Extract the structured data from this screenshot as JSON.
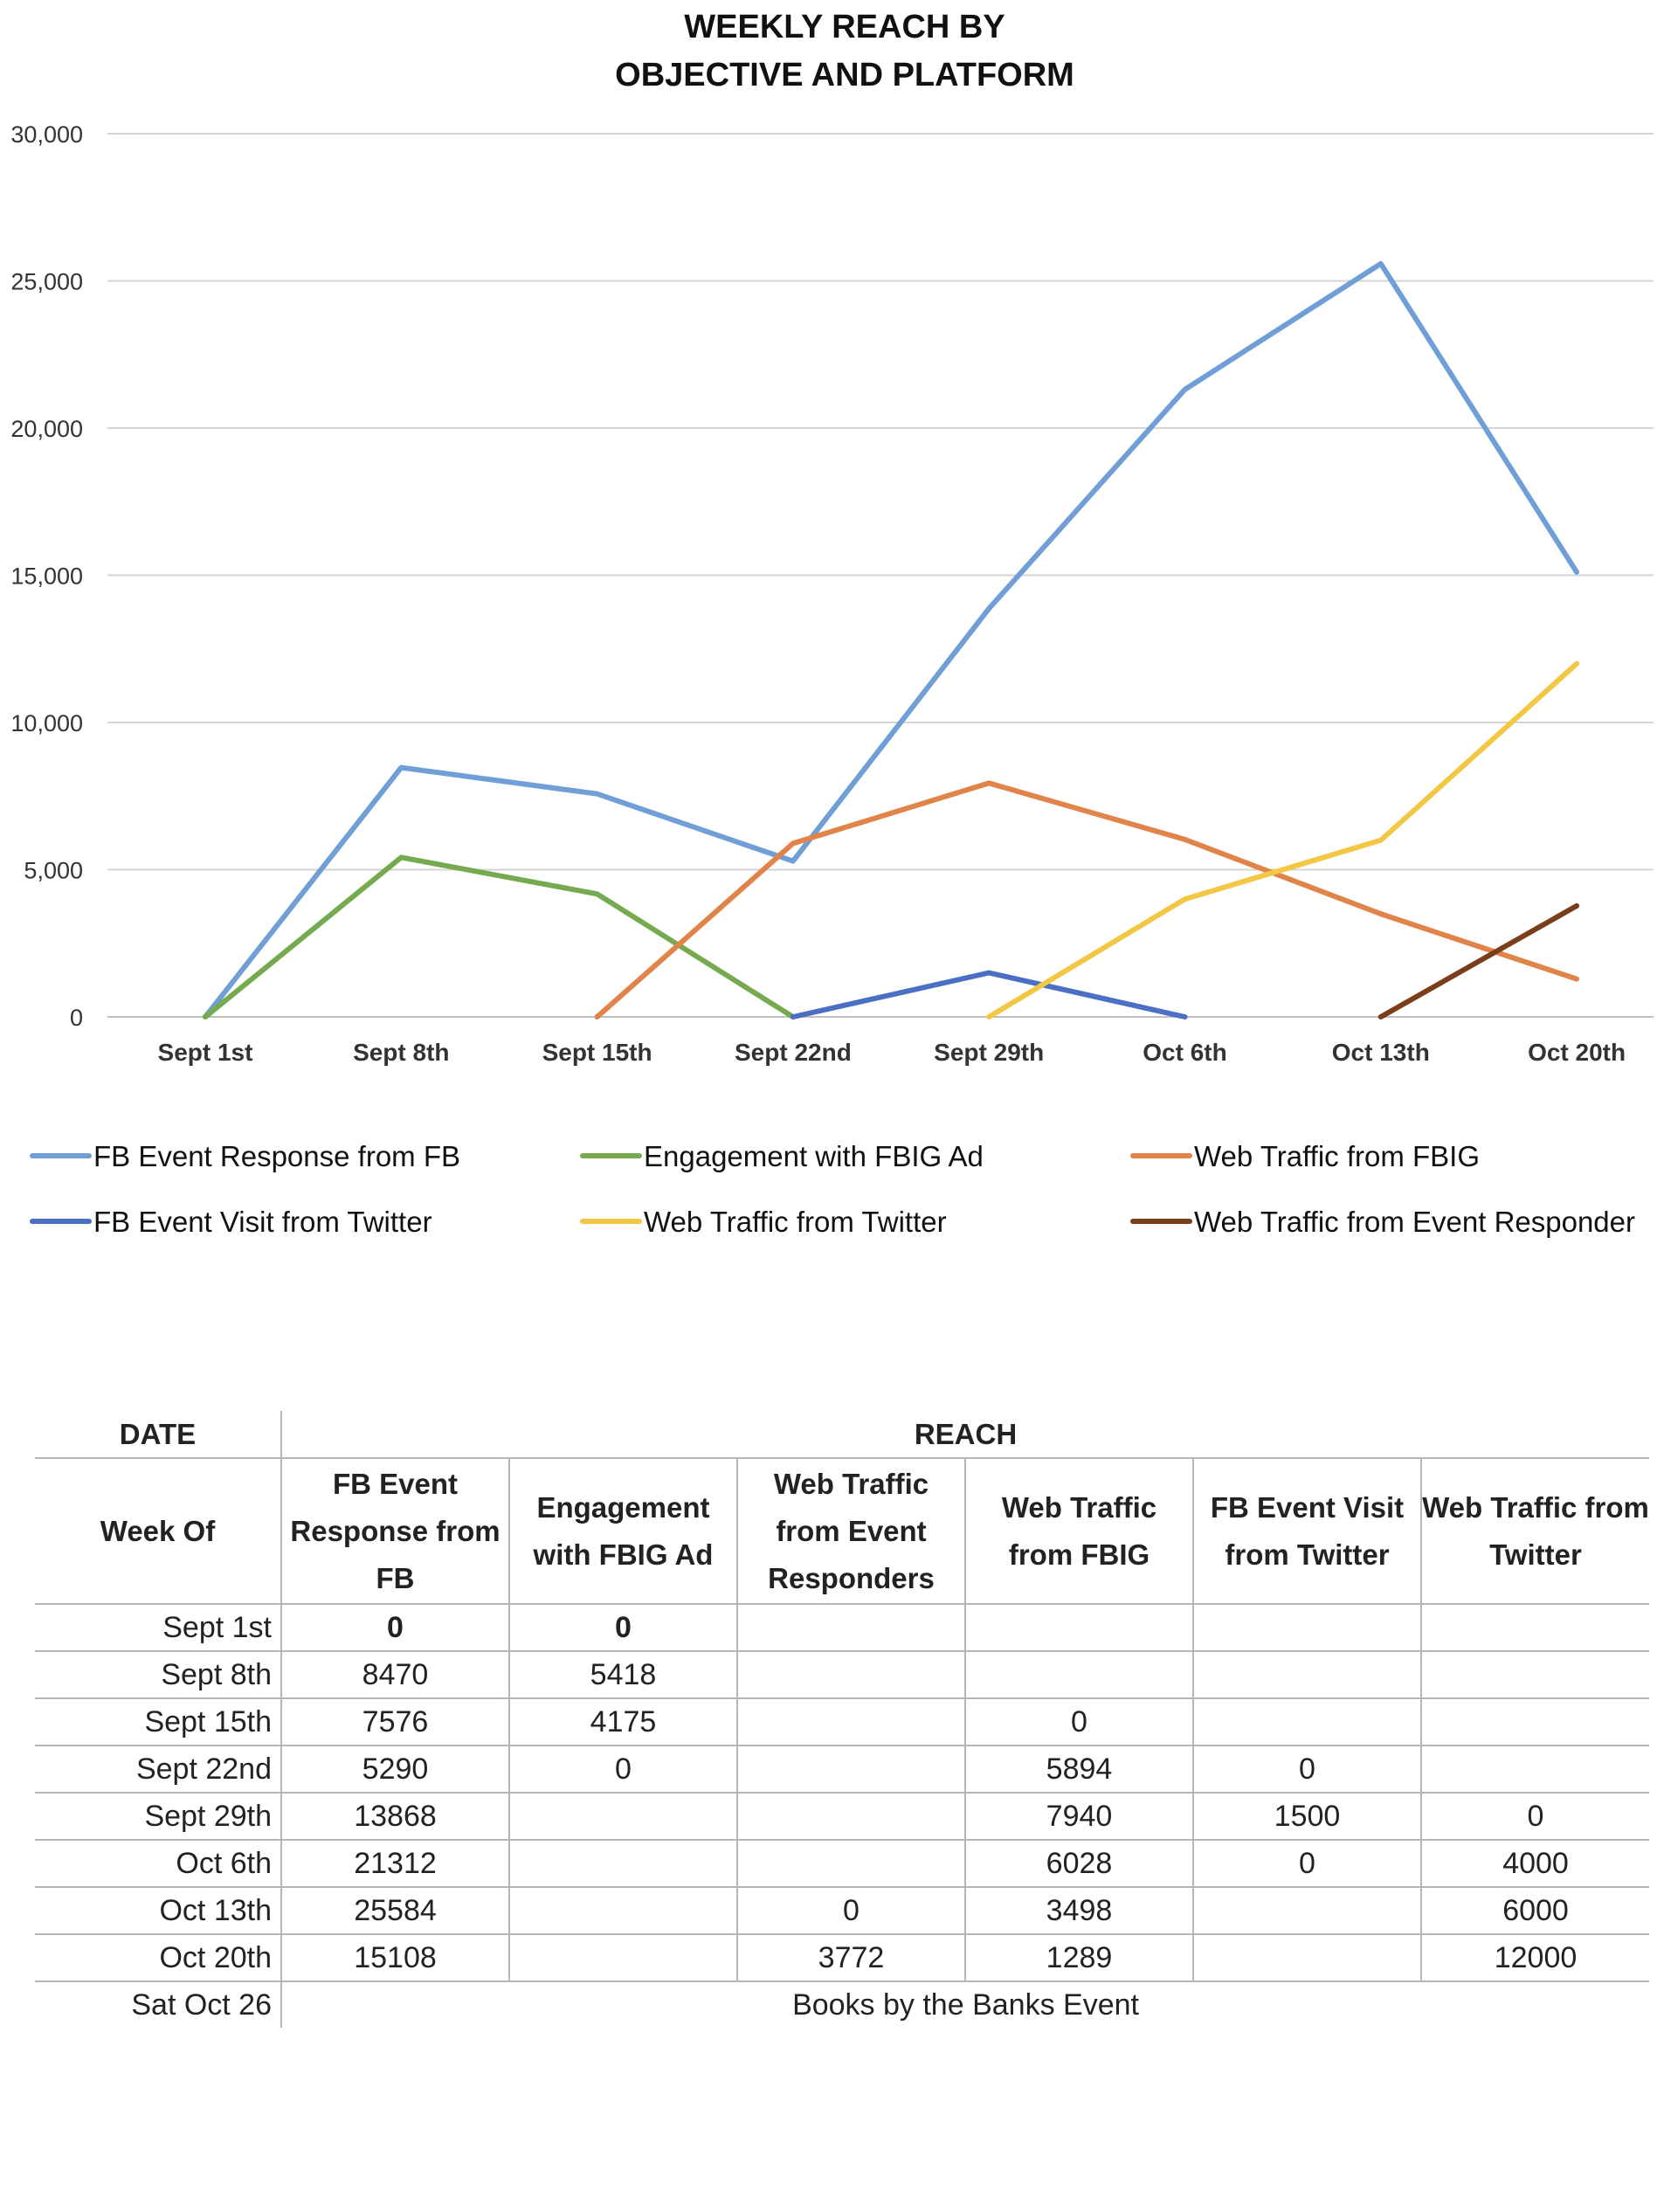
{
  "chart_data": {
    "type": "line",
    "title": [
      "WEEKLY REACH BY",
      "OBJECTIVE AND PLATFORM"
    ],
    "categories": [
      "Sept 1st",
      "Sept 8th",
      "Sept 15th",
      "Sept 22nd",
      "Sept 29th",
      "Oct 6th",
      "Oct 13th",
      "Oct 20th"
    ],
    "ylim": [
      0,
      30000
    ],
    "yticks": [
      0,
      5000,
      10000,
      15000,
      20000,
      25000,
      30000
    ],
    "ytick_labels": [
      "0",
      "5,000",
      "10,000",
      "15,000",
      "20,000",
      "25,000",
      "30,000"
    ],
    "grid": true,
    "legend_position": "bottom",
    "series": [
      {
        "name": "FB Event Response from FB",
        "color": "#6f9fd6",
        "values": [
          0,
          8470,
          7576,
          5290,
          13868,
          21312,
          25584,
          15108
        ]
      },
      {
        "name": "Engagement with FBIG Ad",
        "color": "#76aa4f",
        "values": [
          0,
          5418,
          4175,
          0,
          null,
          null,
          null,
          null
        ]
      },
      {
        "name": "Web Traffic from FBIG",
        "color": "#e0844a",
        "values": [
          null,
          null,
          0,
          5894,
          7940,
          6028,
          3498,
          1289
        ]
      },
      {
        "name": "FB Event Visit from Twitter",
        "color": "#4a6fc4",
        "values": [
          null,
          null,
          null,
          0,
          1500,
          0,
          null,
          null
        ]
      },
      {
        "name": "Web Traffic from Twitter",
        "color": "#f2c744",
        "values": [
          null,
          null,
          null,
          null,
          0,
          4000,
          6000,
          12000
        ]
      },
      {
        "name": "Web Traffic from Event Responder",
        "color": "#7a3f1a",
        "values": [
          null,
          null,
          null,
          null,
          null,
          null,
          0,
          3772
        ]
      }
    ]
  },
  "table": {
    "date_header": "DATE",
    "reach_header": "REACH",
    "week_header": "Week Of",
    "columns": [
      "FB Event Response from FB",
      "Engagement with FBIG Ad",
      "Web Traffic from Event Responders",
      "Web Traffic from FBIG",
      "FB Event Visit from Twitter",
      "Web Traffic from Twitter"
    ],
    "rows": [
      {
        "date": "Sept 1st",
        "cells": [
          "0",
          "0",
          "",
          "",
          "",
          ""
        ]
      },
      {
        "date": "Sept 8th",
        "cells": [
          "8470",
          "5418",
          "",
          "",
          "",
          ""
        ]
      },
      {
        "date": "Sept 15th",
        "cells": [
          "7576",
          "4175",
          "",
          "0",
          "",
          ""
        ]
      },
      {
        "date": "Sept 22nd",
        "cells": [
          "5290",
          "0",
          "",
          "5894",
          "0",
          ""
        ]
      },
      {
        "date": "Sept 29th",
        "cells": [
          "13868",
          "",
          "",
          "7940",
          "1500",
          "0"
        ]
      },
      {
        "date": "Oct 6th",
        "cells": [
          "21312",
          "",
          "",
          "6028",
          "0",
          "4000"
        ]
      },
      {
        "date": "Oct 13th",
        "cells": [
          "25584",
          "",
          "0",
          "3498",
          "",
          "6000"
        ]
      },
      {
        "date": "Oct 20th",
        "cells": [
          "15108",
          "",
          "3772",
          "1289",
          "",
          "12000"
        ]
      }
    ],
    "event_row": {
      "date": "Sat Oct 26",
      "label": "Books by the Banks Event"
    }
  }
}
